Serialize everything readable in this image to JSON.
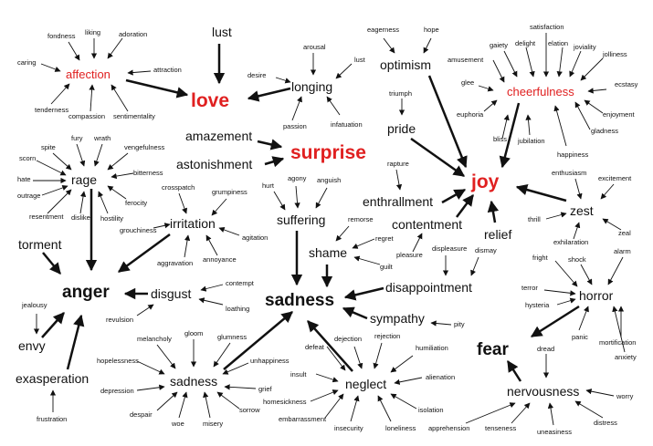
{
  "colors": {
    "text": "#111111",
    "accent": "#e02020",
    "arrow": "#111111"
  },
  "hubs": {
    "love": "love",
    "surprise": "surprise",
    "joy": "joy",
    "anger": "anger",
    "sadness": "sadness",
    "fear": "fear"
  },
  "sub": {
    "affection": "affection",
    "cheerfulness": "cheerfulness",
    "lust": "lust",
    "longing": "longing",
    "optimism": "optimism",
    "pride": "pride",
    "amazement": "amazement",
    "astonishment": "astonishment",
    "rage": "rage",
    "irritation": "irritation",
    "torment": "torment",
    "envy": "envy",
    "exasperation": "exasperation",
    "disgust": "disgust",
    "suffering": "suffering",
    "shame": "shame",
    "enthrallment": "enthrallment",
    "contentment": "contentment",
    "relief": "relief",
    "zest": "zest",
    "disappointment": "disappointment",
    "sympathy": "sympathy",
    "sadness_small": "sadness",
    "neglect": "neglect",
    "horror": "horror",
    "nervousness": "nervousness"
  },
  "minor": {
    "fondness": "fondness",
    "liking": "liking",
    "adoration": "adoration",
    "caring": "caring",
    "attraction": "attraction",
    "tenderness": "tenderness",
    "compassion": "compassion",
    "sentimentality": "sentimentality",
    "arousal": "arousal",
    "lust2": "lust",
    "desire": "desire",
    "passion": "passion",
    "infatuation": "infatuation",
    "eagerness": "eagerness",
    "hope": "hope",
    "triumph": "triumph",
    "satisfaction": "satisfaction",
    "gaiety": "gaiety",
    "delight": "delight",
    "elation": "elation",
    "joviality": "joviality",
    "jolliness": "jolliness",
    "amusement": "amusement",
    "glee": "glee",
    "ecstasy": "ecstasy",
    "euphoria": "euphoria",
    "enjoyment": "enjoyment",
    "bliss": "bliss",
    "jubilation": "jubilation",
    "gladness": "gladness",
    "happiness": "happiness",
    "fury": "fury",
    "wrath": "wrath",
    "spite": "spite",
    "vengefulness": "vengefulness",
    "scorn": "scorn",
    "bitterness": "bitterness",
    "hate": "hate",
    "outrage": "outrage",
    "ferocity": "ferocity",
    "resentment": "resentment",
    "dislike": "dislike",
    "hostility": "hostility",
    "crosspatch": "crosspatch",
    "grumpiness": "grumpiness",
    "grouchiness": "grouchiness",
    "agitation": "agitation",
    "aggravation": "aggravation",
    "annoyance": "annoyance",
    "hurt": "hurt",
    "agony": "agony",
    "anguish": "anguish",
    "rapture": "rapture",
    "remorse": "remorse",
    "regret": "regret",
    "guilt": "guilt",
    "pleasure": "pleasure",
    "displeasure": "displeasure",
    "dismay": "dismay",
    "enthusiasm": "enthusiasm",
    "excitement": "excitement",
    "thrill": "thrill",
    "zeal": "zeal",
    "exhilaration": "exhilaration",
    "fright": "fright",
    "shock": "shock",
    "alarm": "alarm",
    "terror": "terror",
    "hysteria": "hysteria",
    "panic": "panic",
    "mortification": "mortification",
    "anxiety": "anxiety",
    "dread": "dread",
    "worry": "worry",
    "apprehension": "apprehension",
    "tenseness": "tenseness",
    "uneasiness": "uneasiness",
    "distress": "distress",
    "contempt": "contempt",
    "loathing": "loathing",
    "revulsion": "revulsion",
    "jealousy": "jealousy",
    "frustration": "frustration",
    "pity": "pity",
    "melancholy": "melancholy",
    "gloom": "gloom",
    "glumness": "glumness",
    "hopelessness": "hopelessness",
    "unhappiness": "unhappiness",
    "depression": "depression",
    "grief": "grief",
    "despair": "despair",
    "woe": "woe",
    "misery": "misery",
    "sorrow": "sorrow",
    "defeat": "defeat",
    "dejection": "dejection",
    "rejection": "rejection",
    "humiliation": "humiliation",
    "insult": "insult",
    "alienation": "alienation",
    "homesickness": "homesickness",
    "embarrassment": "embarrassment",
    "insecurity": "insecurity",
    "loneliness": "loneliness",
    "isolation": "isolation"
  }
}
